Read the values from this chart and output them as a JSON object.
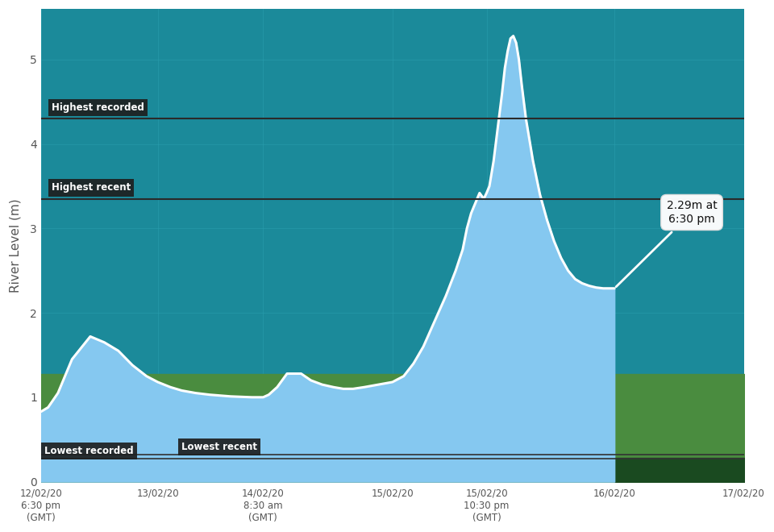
{
  "bg_color": "#1b8a9a",
  "grid_color": "#2a9eae",
  "ylabel": "River Level (m)",
  "ylim": [
    0,
    5.6
  ],
  "yticks": [
    0,
    1,
    2,
    3,
    4,
    5
  ],
  "highest_recorded": 4.3,
  "highest_recent": 3.35,
  "lowest_recorded": 0.27,
  "lowest_recent": 0.32,
  "line_color": "#ffffff",
  "fill_color_light": "#85c8f0",
  "green_band_color": "#4a8c3f",
  "dark_green_color": "#1a4a20",
  "annotation_text": "2.29m at\n6:30 pm",
  "x_tick_labels": [
    "12/02/20\n6:30 pm\n(GMT)",
    "13/02/20",
    "14/02/20\n8:30 am\n(GMT)",
    "15/02/20",
    "15/02/20\n10:30 pm\n(GMT)",
    "16/02/20",
    "17/02/20"
  ],
  "x_tick_positions": [
    0.0,
    0.83,
    1.58,
    2.5,
    3.17,
    4.08,
    5.0
  ],
  "time_points": [
    0.0,
    0.05,
    0.12,
    0.22,
    0.35,
    0.45,
    0.55,
    0.65,
    0.75,
    0.83,
    0.92,
    1.0,
    1.1,
    1.2,
    1.35,
    1.5,
    1.55,
    1.58,
    1.62,
    1.68,
    1.75,
    1.85,
    1.92,
    2.0,
    2.08,
    2.15,
    2.22,
    2.3,
    2.4,
    2.5,
    2.58,
    2.65,
    2.72,
    2.8,
    2.88,
    2.95,
    3.0,
    3.03,
    3.06,
    3.09,
    3.12,
    3.15,
    3.17,
    3.19,
    3.22,
    3.25,
    3.28,
    3.3,
    3.32,
    3.34,
    3.36,
    3.38,
    3.4,
    3.42,
    3.45,
    3.5,
    3.55,
    3.6,
    3.65,
    3.7,
    3.75,
    3.8,
    3.85,
    3.9,
    3.95,
    4.0,
    4.08
  ],
  "river_levels": [
    0.83,
    0.88,
    1.05,
    1.45,
    1.72,
    1.65,
    1.55,
    1.38,
    1.25,
    1.18,
    1.12,
    1.08,
    1.05,
    1.03,
    1.01,
    1.0,
    1.0,
    1.0,
    1.03,
    1.12,
    1.28,
    1.28,
    1.2,
    1.15,
    1.12,
    1.1,
    1.1,
    1.12,
    1.15,
    1.18,
    1.25,
    1.4,
    1.6,
    1.9,
    2.2,
    2.5,
    2.75,
    3.0,
    3.18,
    3.3,
    3.42,
    3.35,
    3.42,
    3.5,
    3.8,
    4.2,
    4.6,
    4.9,
    5.1,
    5.25,
    5.28,
    5.2,
    5.0,
    4.7,
    4.3,
    3.8,
    3.4,
    3.1,
    2.85,
    2.65,
    2.5,
    2.4,
    2.35,
    2.32,
    2.3,
    2.29,
    2.29
  ],
  "green_band_level": 1.28,
  "last_data_x": 4.08,
  "last_data_y": 2.29,
  "xmin": 0.0,
  "xmax": 5.0
}
